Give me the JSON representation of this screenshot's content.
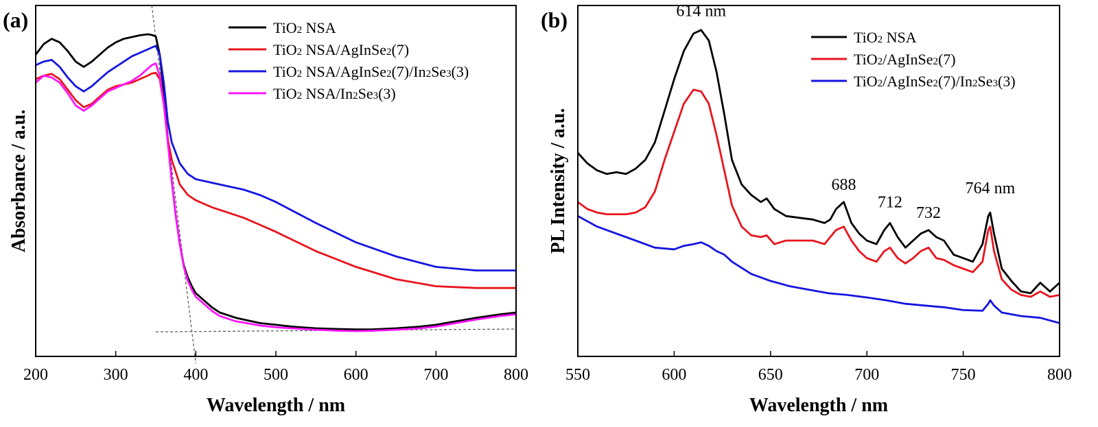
{
  "chart_data": [
    {
      "panel_label": "(a)",
      "type": "line",
      "xlabel": "Wavelength / nm",
      "ylabel": "Absorbance / a.u.",
      "xlim": [
        200,
        800
      ],
      "ylim": [
        0,
        1
      ],
      "xticks": [
        200,
        300,
        400,
        500,
        600,
        700,
        800
      ],
      "legend_position": "top-right",
      "series": [
        {
          "name": "TiO2 NSA",
          "legend_text": [
            "TiO",
            "2",
            " NSA"
          ],
          "color": "#000000",
          "x": [
            200,
            210,
            220,
            230,
            240,
            250,
            260,
            270,
            280,
            290,
            300,
            310,
            320,
            330,
            340,
            345,
            350,
            355,
            360,
            365,
            370,
            375,
            380,
            385,
            390,
            395,
            400,
            410,
            420,
            430,
            450,
            480,
            500,
            520,
            550,
            580,
            600,
            620,
            650,
            680,
            700,
            720,
            750,
            780,
            800
          ],
          "y": [
            0.86,
            0.89,
            0.905,
            0.895,
            0.87,
            0.84,
            0.825,
            0.84,
            0.86,
            0.88,
            0.895,
            0.905,
            0.91,
            0.915,
            0.918,
            0.916,
            0.912,
            0.86,
            0.75,
            0.62,
            0.5,
            0.4,
            0.32,
            0.26,
            0.225,
            0.2,
            0.18,
            0.16,
            0.14,
            0.125,
            0.11,
            0.095,
            0.09,
            0.085,
            0.08,
            0.078,
            0.077,
            0.077,
            0.08,
            0.085,
            0.09,
            0.098,
            0.11,
            0.12,
            0.125
          ]
        },
        {
          "name": "TiO2 NSA/AgInSe2(7)",
          "legend_text": [
            "TiO",
            "2",
            " NSA/AgInSe",
            "2",
            "(7)"
          ],
          "color": "#e8141c",
          "x": [
            200,
            210,
            220,
            230,
            240,
            250,
            260,
            270,
            280,
            290,
            300,
            310,
            320,
            330,
            340,
            345,
            350,
            355,
            360,
            365,
            370,
            380,
            390,
            400,
            420,
            440,
            460,
            480,
            500,
            550,
            600,
            650,
            700,
            750,
            800
          ],
          "y": [
            0.79,
            0.8,
            0.805,
            0.79,
            0.76,
            0.73,
            0.71,
            0.72,
            0.74,
            0.76,
            0.77,
            0.775,
            0.78,
            0.79,
            0.8,
            0.806,
            0.808,
            0.79,
            0.72,
            0.62,
            0.56,
            0.49,
            0.46,
            0.445,
            0.425,
            0.41,
            0.395,
            0.375,
            0.355,
            0.3,
            0.255,
            0.22,
            0.2,
            0.195,
            0.195
          ]
        },
        {
          "name": "TiO2 NSA/AgInSe2(7)/In2Se3(3)",
          "legend_text": [
            "TiO",
            "2",
            " NSA/AgInSe",
            "2",
            "(7)/In",
            "2",
            "Se",
            "3",
            "(3)"
          ],
          "color": "#1414e0",
          "x": [
            200,
            210,
            220,
            230,
            240,
            250,
            260,
            270,
            280,
            290,
            300,
            310,
            320,
            330,
            340,
            345,
            350,
            355,
            360,
            365,
            370,
            380,
            390,
            400,
            420,
            440,
            460,
            480,
            500,
            550,
            600,
            650,
            700,
            750,
            800
          ],
          "y": [
            0.83,
            0.84,
            0.845,
            0.825,
            0.795,
            0.77,
            0.755,
            0.77,
            0.79,
            0.81,
            0.825,
            0.84,
            0.855,
            0.865,
            0.875,
            0.88,
            0.885,
            0.86,
            0.78,
            0.67,
            0.61,
            0.55,
            0.52,
            0.505,
            0.495,
            0.485,
            0.475,
            0.46,
            0.44,
            0.38,
            0.325,
            0.285,
            0.255,
            0.245,
            0.245
          ]
        },
        {
          "name": "TiO2 NSA/In2Se3(3)",
          "legend_text": [
            "TiO",
            "2",
            " NSA/In",
            "2",
            "Se",
            "3",
            "(3)"
          ],
          "color": "#ff14ff",
          "x": [
            200,
            210,
            220,
            230,
            240,
            250,
            260,
            270,
            280,
            290,
            300,
            310,
            320,
            330,
            340,
            345,
            350,
            355,
            360,
            365,
            370,
            375,
            380,
            385,
            390,
            395,
            400,
            410,
            420,
            430,
            450,
            480,
            500,
            520,
            550,
            580,
            600,
            620,
            650,
            680,
            700,
            720,
            750,
            780,
            800
          ],
          "y": [
            0.78,
            0.8,
            0.795,
            0.78,
            0.75,
            0.715,
            0.7,
            0.715,
            0.735,
            0.755,
            0.765,
            0.775,
            0.785,
            0.8,
            0.82,
            0.83,
            0.835,
            0.8,
            0.72,
            0.61,
            0.5,
            0.4,
            0.32,
            0.255,
            0.215,
            0.19,
            0.17,
            0.15,
            0.13,
            0.115,
            0.1,
            0.088,
            0.083,
            0.08,
            0.076,
            0.073,
            0.072,
            0.073,
            0.076,
            0.08,
            0.085,
            0.093,
            0.105,
            0.115,
            0.12
          ]
        }
      ],
      "guide_lines": [
        {
          "x": [
            345,
            400
          ],
          "y": [
            1.0,
            -0.02
          ]
        },
        {
          "x": [
            350,
            800
          ],
          "y": [
            0.07,
            0.078
          ]
        }
      ]
    },
    {
      "panel_label": "(b)",
      "type": "line",
      "xlabel": "Wavelength / nm",
      "ylabel": "PL Intensity / a.u.",
      "xlim": [
        550,
        800
      ],
      "ylim": [
        0,
        1
      ],
      "xticks": [
        550,
        600,
        650,
        700,
        750,
        800
      ],
      "legend_position": "top-right",
      "series": [
        {
          "name": "TiO2 NSA",
          "legend_text": [
            "TiO",
            "2",
            " NSA"
          ],
          "color": "#000000",
          "x": [
            550,
            555,
            560,
            565,
            570,
            575,
            580,
            585,
            590,
            595,
            600,
            605,
            610,
            614,
            618,
            622,
            626,
            630,
            635,
            640,
            645,
            648,
            652,
            658,
            665,
            672,
            678,
            681,
            684,
            688,
            692,
            696,
            700,
            705,
            709,
            712,
            716,
            720,
            724,
            728,
            732,
            736,
            740,
            745,
            750,
            755,
            760,
            763,
            764,
            766,
            770,
            775,
            780,
            785,
            790,
            795,
            800
          ],
          "y": [
            0.58,
            0.55,
            0.53,
            0.52,
            0.525,
            0.52,
            0.535,
            0.56,
            0.61,
            0.7,
            0.79,
            0.87,
            0.92,
            0.93,
            0.9,
            0.81,
            0.69,
            0.56,
            0.49,
            0.46,
            0.44,
            0.45,
            0.42,
            0.4,
            0.395,
            0.39,
            0.38,
            0.39,
            0.42,
            0.44,
            0.38,
            0.35,
            0.33,
            0.32,
            0.36,
            0.38,
            0.34,
            0.31,
            0.33,
            0.35,
            0.36,
            0.34,
            0.33,
            0.29,
            0.28,
            0.27,
            0.32,
            0.4,
            0.41,
            0.35,
            0.25,
            0.215,
            0.185,
            0.18,
            0.21,
            0.185,
            0.21
          ]
        },
        {
          "name": "TiO2/AgInSe2(7)",
          "legend_text": [
            "TiO",
            "2",
            "/AgInSe",
            "2",
            "(7)"
          ],
          "color": "#e8141c",
          "x": [
            550,
            555,
            560,
            565,
            570,
            575,
            580,
            585,
            590,
            595,
            600,
            605,
            610,
            614,
            618,
            622,
            626,
            630,
            635,
            640,
            645,
            648,
            652,
            658,
            665,
            672,
            678,
            681,
            684,
            688,
            692,
            696,
            700,
            705,
            709,
            712,
            716,
            720,
            724,
            728,
            732,
            736,
            740,
            745,
            750,
            755,
            760,
            763,
            764,
            766,
            770,
            775,
            780,
            785,
            790,
            795,
            800
          ],
          "y": [
            0.44,
            0.42,
            0.41,
            0.405,
            0.405,
            0.405,
            0.41,
            0.425,
            0.47,
            0.56,
            0.64,
            0.72,
            0.76,
            0.755,
            0.72,
            0.63,
            0.53,
            0.43,
            0.37,
            0.345,
            0.34,
            0.345,
            0.32,
            0.33,
            0.33,
            0.33,
            0.32,
            0.34,
            0.36,
            0.37,
            0.33,
            0.3,
            0.28,
            0.27,
            0.3,
            0.31,
            0.28,
            0.265,
            0.28,
            0.3,
            0.31,
            0.28,
            0.275,
            0.26,
            0.25,
            0.24,
            0.27,
            0.36,
            0.37,
            0.3,
            0.22,
            0.19,
            0.175,
            0.17,
            0.185,
            0.17,
            0.175
          ]
        },
        {
          "name": "TiO2/AgInSe2(7)/In2Se3(3)",
          "legend_text": [
            "TiO",
            "2",
            "/AgInSe",
            "2",
            "(7)/In",
            "2",
            "Se",
            "3",
            "(3)"
          ],
          "color": "#1414e0",
          "x": [
            550,
            560,
            570,
            580,
            590,
            600,
            605,
            610,
            614,
            618,
            622,
            626,
            630,
            640,
            650,
            660,
            670,
            680,
            690,
            700,
            710,
            720,
            730,
            740,
            750,
            760,
            763,
            764,
            766,
            770,
            780,
            790,
            800
          ],
          "y": [
            0.4,
            0.37,
            0.35,
            0.33,
            0.31,
            0.305,
            0.315,
            0.32,
            0.325,
            0.315,
            0.3,
            0.29,
            0.27,
            0.235,
            0.215,
            0.2,
            0.19,
            0.18,
            0.175,
            0.168,
            0.16,
            0.15,
            0.145,
            0.14,
            0.132,
            0.13,
            0.15,
            0.16,
            0.145,
            0.125,
            0.115,
            0.11,
            0.095
          ]
        }
      ],
      "annotations": [
        {
          "text": "614 nm",
          "x": 614,
          "y": 0.97
        },
        {
          "text": "688",
          "x": 688,
          "y": 0.475
        },
        {
          "text": "712",
          "x": 712,
          "y": 0.425
        },
        {
          "text": "732",
          "x": 732,
          "y": 0.395
        },
        {
          "text": "764 nm",
          "x": 764,
          "y": 0.465
        }
      ]
    }
  ]
}
